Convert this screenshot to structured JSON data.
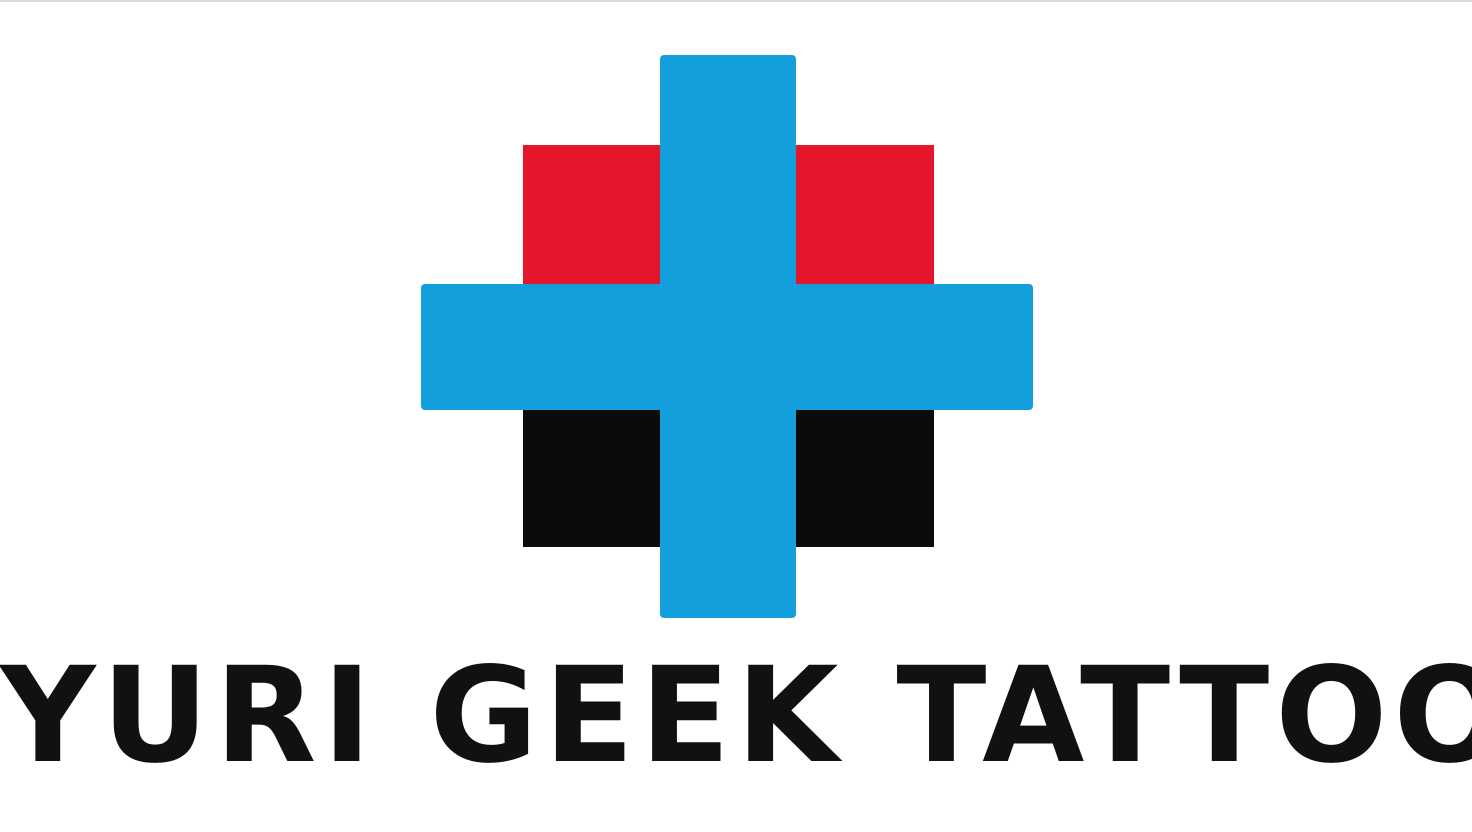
{
  "brand": {
    "name": "YURI GEEK TATTOO"
  },
  "logo": {
    "icon": "cross-logo-icon",
    "colors": {
      "cross": "#139fdb",
      "top_block": "#e4162b",
      "bottom_block": "#0b0b0b",
      "text": "#111111",
      "background": "#ffffff"
    }
  }
}
